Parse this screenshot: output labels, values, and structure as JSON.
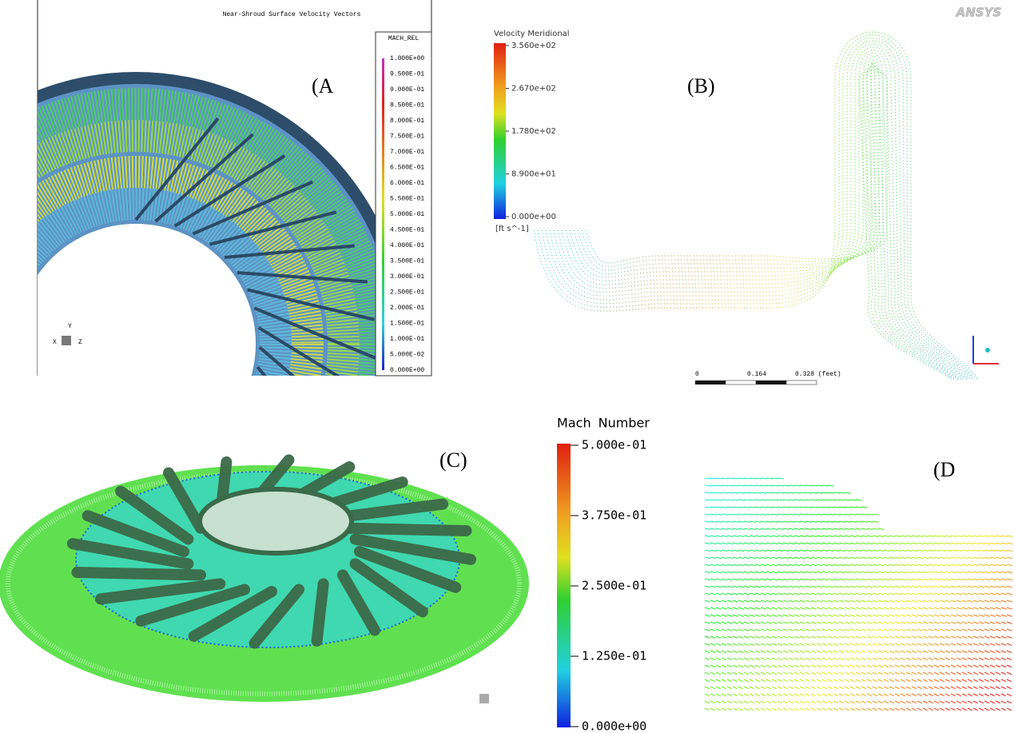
{
  "panel_a": {
    "label": "(A",
    "title": "Near-Shroud Surface Velocity Vectors",
    "legend_title": "MACH_REL",
    "legend_labels": [
      "1.000E+00",
      "9.500E-01",
      "9.000E-01",
      "8.500E-01",
      "8.000E-01",
      "7.500E-01",
      "7.000E-01",
      "6.500E-01",
      "6.000E-01",
      "5.500E-01",
      "5.000E-01",
      "4.500E-01",
      "4.000E-01",
      "3.500E-01",
      "3.000E-01",
      "2.500E-01",
      "2.000E-01",
      "1.500E-01",
      "1.000E-01",
      "5.000E-02",
      "0.000E+00"
    ],
    "axes": [
      "Y",
      "X",
      "Z"
    ]
  },
  "panel_b": {
    "label": "(B)",
    "brand": "ANSYS",
    "legend_title": "Velocity Meridional",
    "legend_labels": [
      "3.560e+02",
      "2.670e+02",
      "1.780e+02",
      "8.900e+01",
      "0.000e+00"
    ],
    "units": "[ft s^-1]",
    "scale_labels": [
      "0",
      "0.164",
      "0.328 (feet)"
    ]
  },
  "panel_c": {
    "label": "(C)",
    "legend_title": "Mach Number",
    "legend_labels": [
      "5.000e-01",
      "3.750e-01",
      "2.500e-01",
      "1.250e-01",
      "0.000e+00"
    ]
  },
  "panel_d": {
    "label": "(D"
  }
}
